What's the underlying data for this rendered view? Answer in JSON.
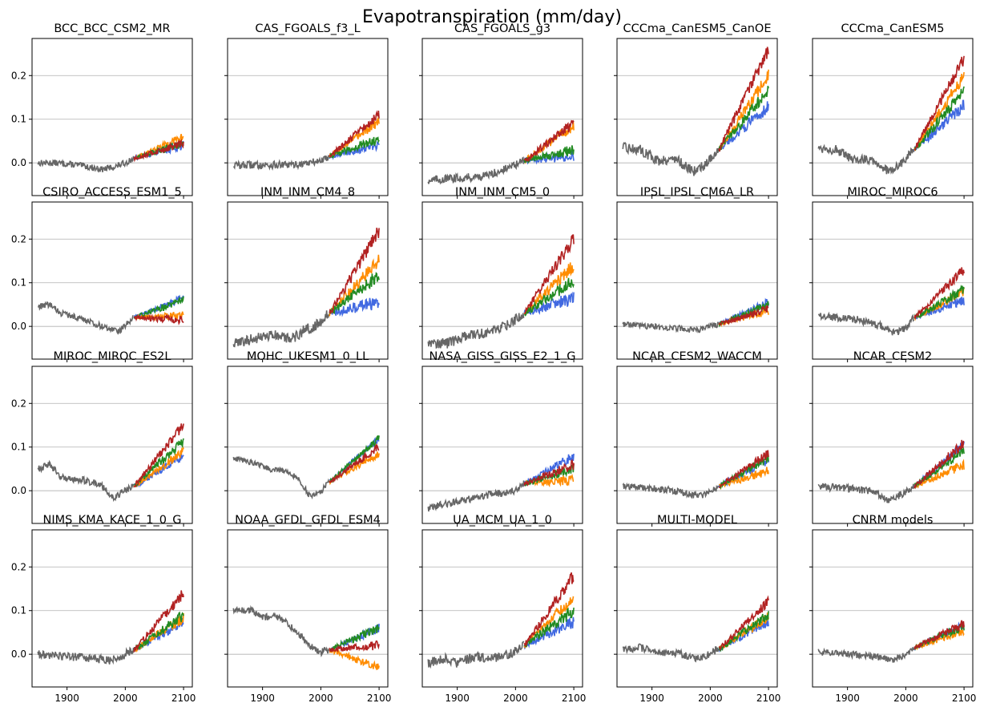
{
  "figure_title": "Evapotranspiration (mm/day)",
  "colors": {
    "historical": "#666666",
    "blue": "#4169e1",
    "orange": "#ff8c00",
    "green": "#228b22",
    "red": "#b22222",
    "grid": "#b0b0b0"
  },
  "chart_data": {
    "type": "line",
    "layout": "4x5 small multiples, shared x and y axes",
    "x_ticks": [
      1900,
      2000,
      2100
    ],
    "y_ticks": [
      0.0,
      0.1,
      0.2
    ],
    "y_tick_labels": [
      "0.0",
      "0.1",
      "0.2"
    ],
    "xlim": [
      1840,
      2115
    ],
    "ylim": [
      -0.075,
      0.285
    ],
    "grid": "horizontal only",
    "historical_period": [
      1850,
      2014
    ],
    "scenario_period": [
      2015,
      2100
    ],
    "series_order": [
      "historical",
      "blue",
      "orange",
      "green",
      "red"
    ],
    "panels": [
      {
        "title": "BCC_BCC_CSM2_MR",
        "hist": [
          [
            1850,
            0.0
          ],
          [
            1880,
            0.0
          ],
          [
            1920,
            -0.005
          ],
          [
            1960,
            -0.015
          ],
          [
            1980,
            -0.01
          ],
          [
            2000,
            0.0
          ],
          [
            2014,
            0.01
          ]
        ],
        "end": {
          "blue": 0.04,
          "orange": 0.06,
          "green": 0.045,
          "red": 0.045
        }
      },
      {
        "title": "CAS_FGOALS_f3_L",
        "hist": [
          [
            1850,
            -0.005
          ],
          [
            1900,
            -0.005
          ],
          [
            1950,
            -0.005
          ],
          [
            1980,
            0.0
          ],
          [
            2000,
            0.005
          ],
          [
            2014,
            0.015
          ]
        ],
        "end": {
          "blue": 0.04,
          "orange": 0.095,
          "green": 0.055,
          "red": 0.11
        }
      },
      {
        "title": "CAS_FGOALS_g3",
        "hist": [
          [
            1850,
            -0.04
          ],
          [
            1900,
            -0.035
          ],
          [
            1950,
            -0.03
          ],
          [
            1980,
            -0.015
          ],
          [
            2000,
            -0.005
          ],
          [
            2014,
            0.005
          ]
        ],
        "end": {
          "blue": 0.015,
          "orange": 0.085,
          "green": 0.03,
          "red": 0.09
        }
      },
      {
        "title": "CCCma_CanESM5_CanOE",
        "hist": [
          [
            1850,
            0.035
          ],
          [
            1880,
            0.03
          ],
          [
            1910,
            0.005
          ],
          [
            1940,
            0.01
          ],
          [
            1970,
            -0.02
          ],
          [
            1990,
            -0.005
          ],
          [
            2014,
            0.03
          ]
        ],
        "end": {
          "blue": 0.13,
          "orange": 0.2,
          "green": 0.165,
          "red": 0.26
        }
      },
      {
        "title": "CCCma_CanESM5",
        "hist": [
          [
            1850,
            0.035
          ],
          [
            1880,
            0.03
          ],
          [
            1910,
            0.005
          ],
          [
            1940,
            0.01
          ],
          [
            1970,
            -0.02
          ],
          [
            1990,
            -0.005
          ],
          [
            2014,
            0.03
          ]
        ],
        "end": {
          "blue": 0.13,
          "orange": 0.2,
          "green": 0.165,
          "red": 0.24
        }
      },
      {
        "title": "CSIRO_ACCESS_ESM1_5",
        "hist": [
          [
            1850,
            0.045
          ],
          [
            1870,
            0.05
          ],
          [
            1890,
            0.03
          ],
          [
            1920,
            0.02
          ],
          [
            1960,
            0.0
          ],
          [
            1990,
            -0.01
          ],
          [
            2014,
            0.02
          ]
        ],
        "end": {
          "blue": 0.065,
          "orange": 0.025,
          "green": 0.06,
          "red": 0.015
        }
      },
      {
        "title": "INM_INM_CM4_8",
        "hist": [
          [
            1850,
            -0.04
          ],
          [
            1880,
            -0.03
          ],
          [
            1920,
            -0.02
          ],
          [
            1950,
            -0.03
          ],
          [
            1970,
            -0.01
          ],
          [
            1990,
            0.0
          ],
          [
            2014,
            0.03
          ]
        ],
        "end": {
          "blue": 0.055,
          "orange": 0.15,
          "green": 0.12,
          "red": 0.22
        }
      },
      {
        "title": "INM_INM_CM5_0",
        "hist": [
          [
            1850,
            -0.035
          ],
          [
            1880,
            -0.04
          ],
          [
            1920,
            -0.02
          ],
          [
            1950,
            -0.015
          ],
          [
            1970,
            -0.005
          ],
          [
            1990,
            0.005
          ],
          [
            2014,
            0.03
          ]
        ],
        "end": {
          "blue": 0.065,
          "orange": 0.14,
          "green": 0.105,
          "red": 0.2
        }
      },
      {
        "title": "IPSL_IPSL_CM6A_LR",
        "hist": [
          [
            1850,
            0.005
          ],
          [
            1900,
            0.0
          ],
          [
            1950,
            -0.005
          ],
          [
            1980,
            -0.01
          ],
          [
            2000,
            0.0
          ],
          [
            2014,
            0.005
          ]
        ],
        "end": {
          "blue": 0.055,
          "orange": 0.035,
          "green": 0.05,
          "red": 0.04
        }
      },
      {
        "title": "MIROC_MIROC6",
        "hist": [
          [
            1850,
            0.025
          ],
          [
            1880,
            0.02
          ],
          [
            1920,
            0.015
          ],
          [
            1960,
            0.0
          ],
          [
            1980,
            -0.015
          ],
          [
            2000,
            -0.005
          ],
          [
            2014,
            0.02
          ]
        ],
        "end": {
          "blue": 0.06,
          "orange": 0.08,
          "green": 0.085,
          "red": 0.13
        }
      },
      {
        "title": "MIROC_MIROC_ES2L",
        "hist": [
          [
            1850,
            0.05
          ],
          [
            1870,
            0.06
          ],
          [
            1890,
            0.03
          ],
          [
            1930,
            0.025
          ],
          [
            1960,
            0.01
          ],
          [
            1980,
            -0.015
          ],
          [
            2000,
            0.0
          ],
          [
            2014,
            0.01
          ]
        ],
        "end": {
          "blue": 0.08,
          "orange": 0.09,
          "green": 0.115,
          "red": 0.15
        }
      },
      {
        "title": "MOHC_UKESM1_0_LL",
        "hist": [
          [
            1850,
            0.075
          ],
          [
            1880,
            0.065
          ],
          [
            1910,
            0.05
          ],
          [
            1940,
            0.045
          ],
          [
            1960,
            0.03
          ],
          [
            1980,
            -0.01
          ],
          [
            1995,
            -0.01
          ],
          [
            2014,
            0.02
          ]
        ],
        "end": {
          "blue": 0.12,
          "orange": 0.085,
          "green": 0.12,
          "red": 0.1
        }
      },
      {
        "title": "NASA_GISS_GISS_E2_1_G",
        "hist": [
          [
            1850,
            -0.04
          ],
          [
            1900,
            -0.025
          ],
          [
            1950,
            -0.01
          ],
          [
            1980,
            -0.005
          ],
          [
            2000,
            0.0
          ],
          [
            2014,
            0.015
          ]
        ],
        "end": {
          "blue": 0.08,
          "orange": 0.025,
          "green": 0.05,
          "red": 0.06
        }
      },
      {
        "title": "NCAR_CESM2_WACCM",
        "hist": [
          [
            1850,
            0.01
          ],
          [
            1900,
            0.005
          ],
          [
            1940,
            0.0
          ],
          [
            1970,
            -0.01
          ],
          [
            1990,
            -0.01
          ],
          [
            2000,
            -0.005
          ],
          [
            2014,
            0.01
          ]
        ],
        "end": {
          "blue": 0.07,
          "orange": 0.045,
          "green": 0.075,
          "red": 0.085
        }
      },
      {
        "title": "NCAR_CESM2",
        "hist": [
          [
            1850,
            0.01
          ],
          [
            1900,
            0.005
          ],
          [
            1940,
            0.0
          ],
          [
            1970,
            -0.02
          ],
          [
            1990,
            -0.01
          ],
          [
            2014,
            0.01
          ]
        ],
        "end": {
          "blue": 0.105,
          "orange": 0.06,
          "green": 0.09,
          "red": 0.11
        }
      },
      {
        "title": "NIMS_KMA_KACE_1_0_G",
        "hist": [
          [
            1850,
            0.0
          ],
          [
            1900,
            -0.005
          ],
          [
            1950,
            -0.01
          ],
          [
            1975,
            -0.015
          ],
          [
            2000,
            0.0
          ],
          [
            2014,
            0.01
          ]
        ],
        "end": {
          "blue": 0.075,
          "orange": 0.085,
          "green": 0.09,
          "red": 0.14
        }
      },
      {
        "title": "NOAA_GFDL_GFDL_ESM4",
        "hist": [
          [
            1850,
            0.1
          ],
          [
            1880,
            0.1
          ],
          [
            1900,
            0.085
          ],
          [
            1930,
            0.085
          ],
          [
            1960,
            0.05
          ],
          [
            1980,
            0.02
          ],
          [
            2000,
            0.005
          ],
          [
            2014,
            0.01
          ]
        ],
        "end": {
          "blue": 0.06,
          "orange": -0.03,
          "green": 0.06,
          "red": 0.02
        }
      },
      {
        "title": "UA_MCM_UA_1_0",
        "hist": [
          [
            1850,
            -0.02
          ],
          [
            1880,
            -0.01
          ],
          [
            1900,
            -0.02
          ],
          [
            1930,
            -0.005
          ],
          [
            1960,
            -0.01
          ],
          [
            1990,
            0.0
          ],
          [
            2014,
            0.02
          ]
        ],
        "end": {
          "blue": 0.075,
          "orange": 0.13,
          "green": 0.1,
          "red": 0.18
        }
      },
      {
        "title": "MULTI-MODEL",
        "hist": [
          [
            1850,
            0.01
          ],
          [
            1880,
            0.015
          ],
          [
            1910,
            0.005
          ],
          [
            1950,
            0.0
          ],
          [
            1970,
            -0.01
          ],
          [
            1990,
            -0.005
          ],
          [
            2014,
            0.012
          ]
        ],
        "end": {
          "blue": 0.075,
          "orange": 0.085,
          "green": 0.09,
          "red": 0.12
        }
      },
      {
        "title": "CNRM models",
        "hist": [
          [
            1850,
            0.005
          ],
          [
            1900,
            0.0
          ],
          [
            1950,
            -0.005
          ],
          [
            1975,
            -0.015
          ],
          [
            2000,
            0.0
          ],
          [
            2014,
            0.015
          ]
        ],
        "end": {
          "blue": 0.065,
          "orange": 0.055,
          "green": 0.065,
          "red": 0.07
        }
      }
    ]
  }
}
